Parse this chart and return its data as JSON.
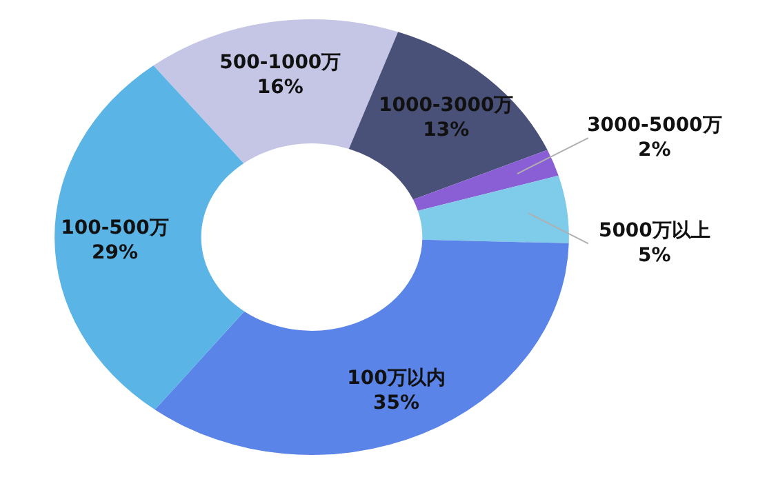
{
  "chart_data": {
    "type": "donut",
    "categories": [
      "500-1000万",
      "1000-3000万",
      "3000-5000万",
      "5000万以上",
      "100万以内",
      "100-500万"
    ],
    "values": [
      16,
      13,
      2,
      5,
      35,
      29
    ],
    "value_labels": [
      "16%",
      "13%",
      "2%",
      "5%",
      "35%",
      "29%"
    ],
    "colors": [
      "#c5c6e6",
      "#4a5178",
      "#8a5fd6",
      "#7ecbea",
      "#5b84e8",
      "#5ab4e6"
    ]
  }
}
